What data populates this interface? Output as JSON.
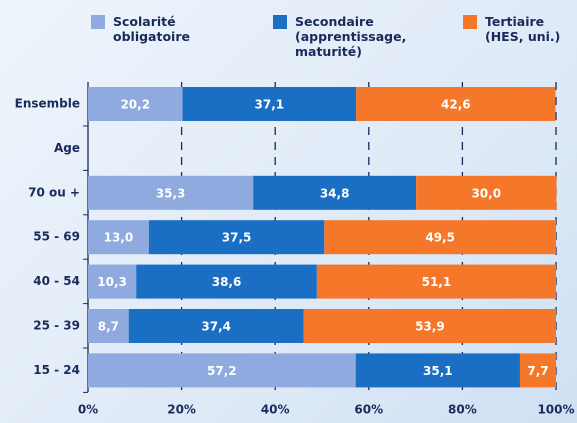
{
  "chart_data": {
    "type": "stacked-barh",
    "categories": [
      "Ensemble",
      "Age",
      "70 ou +",
      "55 - 69",
      "40 - 54",
      "25 - 39",
      "15 - 24"
    ],
    "series": [
      {
        "name": "Scolarité\nobligatoire",
        "color": "#8eaadf",
        "values": [
          20.2,
          null,
          35.3,
          13.0,
          10.3,
          8.7,
          57.2
        ],
        "value_labels": [
          "20,2",
          null,
          "35,3",
          "13,0",
          "10,3",
          "8,7",
          "57,2"
        ]
      },
      {
        "name": "Secondaire\n(apprentissage,\nmaturité)",
        "color": "#1a6fc4",
        "values": [
          37.1,
          null,
          34.8,
          37.5,
          38.6,
          37.4,
          35.1
        ],
        "value_labels": [
          "37,1",
          null,
          "34,8",
          "37,5",
          "38,6",
          "37,4",
          "35,1"
        ]
      },
      {
        "name": "Tertiaire\n(HES, uni.)",
        "color": "#f5772a",
        "values": [
          42.6,
          null,
          30.0,
          49.5,
          51.1,
          53.9,
          7.7
        ],
        "value_labels": [
          "42,6",
          null,
          "30,0",
          "49,5",
          "51,1",
          "53,9",
          "7,7"
        ]
      }
    ],
    "xlim": [
      0,
      100
    ],
    "xticks": [
      {
        "value": 0,
        "label": "0%"
      },
      {
        "value": 20,
        "label": "20%"
      },
      {
        "value": 40,
        "label": "40%"
      },
      {
        "value": 60,
        "label": "60%"
      },
      {
        "value": 80,
        "label": "80%"
      },
      {
        "value": 100,
        "label": "100%"
      }
    ],
    "grid": true
  }
}
